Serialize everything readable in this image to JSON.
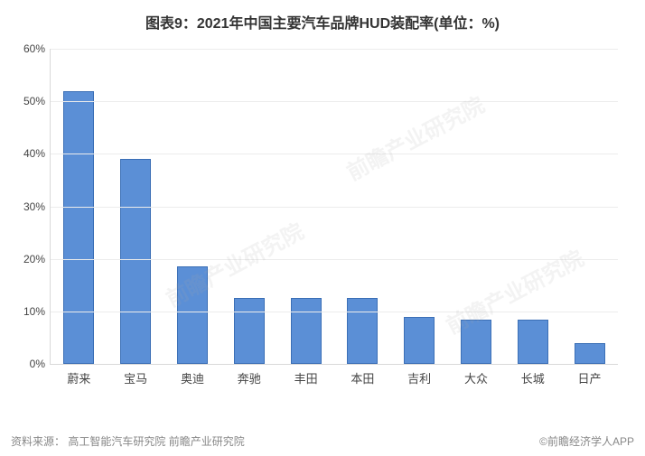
{
  "title": "图表9：2021年中国主要汽车品牌HUD装配率(单位：%)",
  "chart": {
    "type": "bar",
    "categories": [
      "蔚来",
      "宝马",
      "奥迪",
      "奔驰",
      "丰田",
      "本田",
      "吉利",
      "大众",
      "长城",
      "日产"
    ],
    "values": [
      52,
      39,
      18.5,
      12.5,
      12.5,
      12.5,
      9,
      8.5,
      8.5,
      4
    ],
    "bar_color": "#5b8fd6",
    "bar_border_color": "#3b6fb6",
    "ylim_max": 60,
    "ytick_step": 10,
    "ytick_suffix": "%",
    "grid_color": "#ececec",
    "axis_color": "#d9d9d9",
    "background_color": "#ffffff",
    "label_fontsize": 13,
    "tick_fontsize": 12
  },
  "watermark_text": "前瞻产业研究院",
  "footer": {
    "source_label": "资料来源：",
    "source_text": "高工智能汽车研究院 前瞻产业研究院",
    "attribution": "©前瞻经济学人APP"
  }
}
